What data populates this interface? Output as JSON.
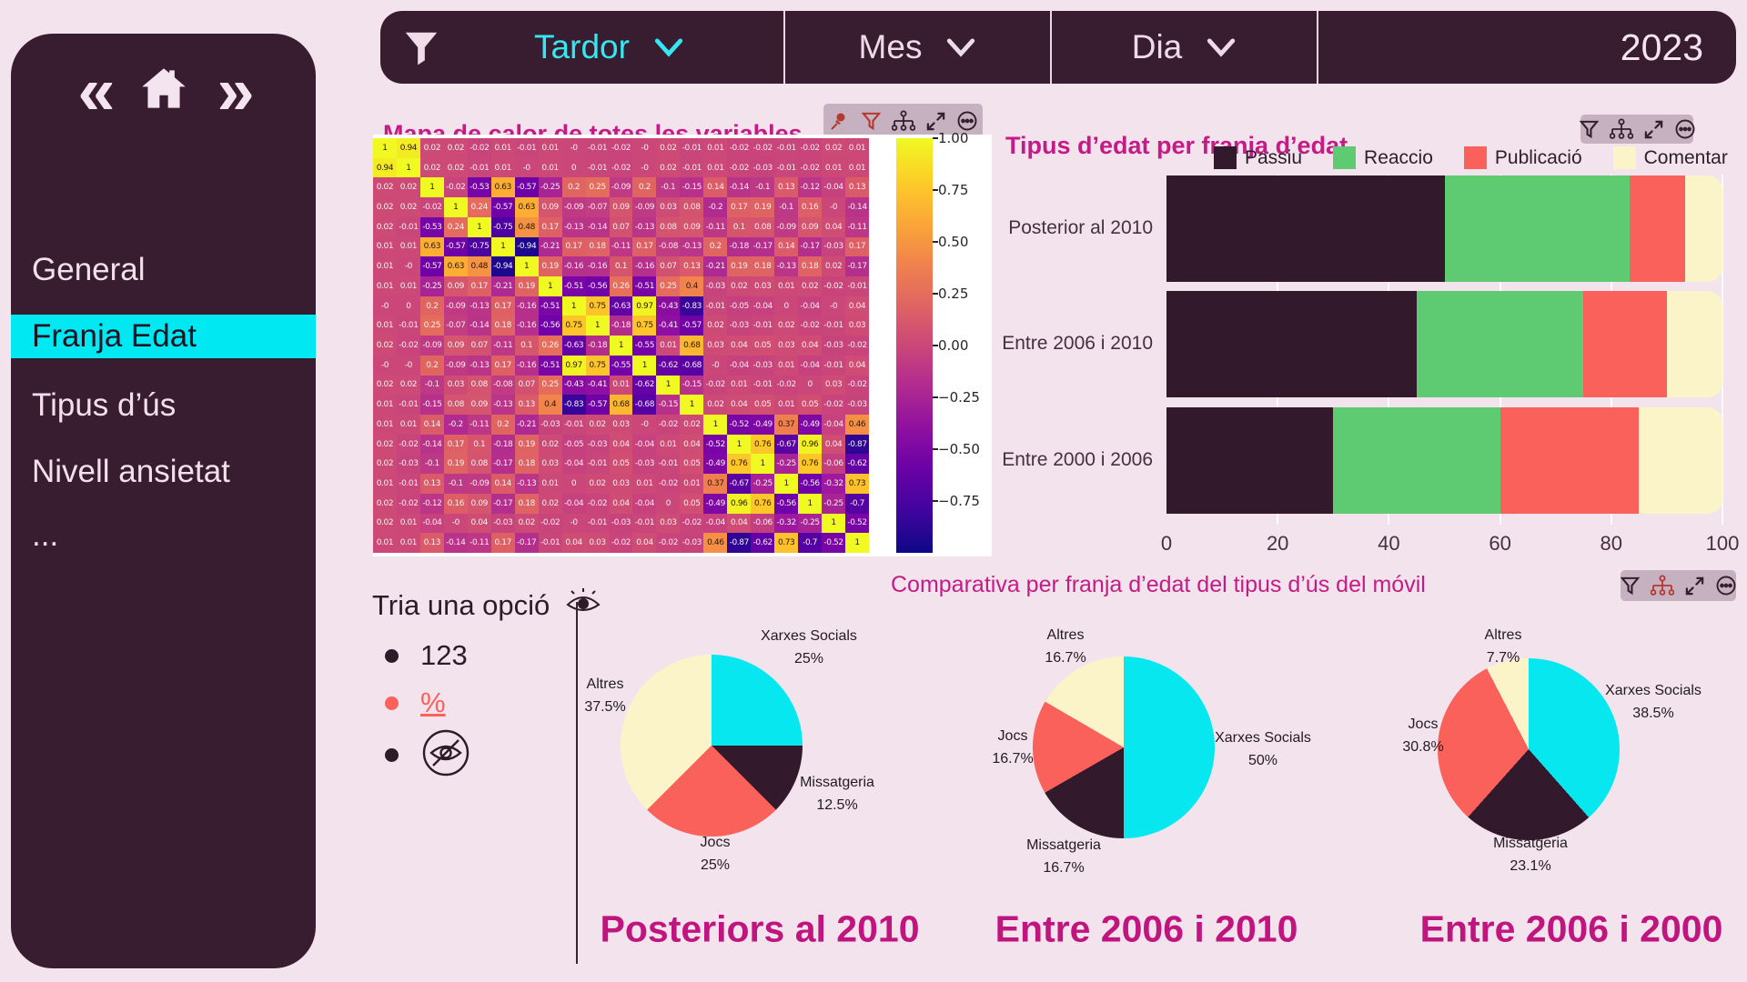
{
  "topbar": {
    "filters": [
      {
        "label": "Tardor",
        "active": true
      },
      {
        "label": "Mes",
        "active": false
      },
      {
        "label": "Dia",
        "active": false
      }
    ],
    "year": "2023"
  },
  "sidebar": {
    "items": [
      {
        "label": "General",
        "active": false
      },
      {
        "label": "Franja Edat",
        "active": true
      },
      {
        "label": "Tipus d’ús",
        "active": false
      },
      {
        "label": "Nivell ansietat",
        "active": false
      },
      {
        "label": "...",
        "active": false
      }
    ]
  },
  "options_panel": {
    "title": "Tria una opció",
    "items": [
      {
        "label": "123",
        "color": "#2e1b29",
        "underline": false,
        "icon": null
      },
      {
        "label": "%",
        "color": "#f9615a",
        "underline": true,
        "icon": null
      },
      {
        "label": "",
        "color": "#2e1b29",
        "underline": false,
        "icon": "eye-slash-icon"
      }
    ]
  },
  "comparative": {
    "title": "Comparativa per franja d’edat del tipus d’ús del móvil",
    "toolbar": [
      "filter",
      "hierarchy",
      "expand",
      "more"
    ]
  },
  "heatmap_toolbar": [
    "pin",
    "filter",
    "hierarchy",
    "expand",
    "more"
  ],
  "bar_toolbar": [
    "filter",
    "hierarchy",
    "expand",
    "more"
  ],
  "chart_data": [
    {
      "id": "heatmap",
      "type": "heatmap",
      "title": "Mapa de calor de totes les variables",
      "colormap": "plasma",
      "vmin": -1,
      "vmax": 1,
      "size": 21,
      "colorbar_ticks": [
        "1.00",
        "0.75",
        "0.50",
        "0.25",
        "0.00",
        "-0.25",
        "-0.50",
        "-0.75"
      ],
      "rows": [
        "1 0.94 0.02 0.02 -0.02 0.01 -0.01 0.01 -0 -0.01 -0.02 -0 0.02 -0.01 0.01 -0.02 -0.02 -0.01 -0.02 0.02 0.01",
        "0.94 1 0.02 0.02 -0.01 0.01 -0 0.01 0 -0.01 -0.02 -0 0.02 -0.01 0.01 -0.02 -0.03 -0.01 -0.02 0.01 0.01",
        "0.02 0.02 1 -0.02 -0.53 0.63 -0.57 -0.25 0.2 0.25 -0.09 0.2 -0.1 -0.15 0.14 -0.14 -0.1 0.13 -0.12 -0.04 0.13",
        "0.02 0.02 -0.02 1 0.24 -0.57 0.63 0.09 -0.09 -0.07 0.09 -0.09 0.03 0.08 -0.2 0.17 0.19 -0.1 0.16 -0 -0.14",
        "0.02 -0.01 -0.53 0.24 1 -0.75 0.48 0.17 -0.13 -0.14 0.07 -0.13 0.08 0.09 -0.11 0.1 0.08 -0.09 0.09 0.04 -0.11",
        "0.01 0.01 0.63 -0.57 -0.75 1 -0.94 -0.21 0.17 0.18 -0.11 0.17 -0.08 -0.13 0.2 -0.18 -0.17 0.14 -0.17 -0.03 0.17",
        "0.01 -0 -0.57 0.63 0.48 -0.94 1 0.19 -0.16 -0.16 0.1 -0.16 0.07 0.13 -0.21 0.19 0.18 -0.13 0.18 0.02 -0.17",
        "0.01 0.01 -0.25 0.09 0.17 -0.21 0.19 1 -0.51 -0.56 0.26 -0.51 0.25 0.4 -0.03 0.02 0.03 0.01 0.02 -0.02 -0.01",
        "-0 0 0.2 -0.09 -0.13 0.17 -0.16 -0.51 1 0.75 -0.63 0.97 -0.43 -0.83 -0.01 -0.05 -0.04 0 -0.04 -0 0.04",
        "0.01 -0.01 0.25 -0.07 -0.14 0.18 -0.16 -0.56 0.75 1 -0.18 0.75 -0.41 -0.57 0.02 -0.03 -0.01 0.02 -0.02 -0.01 0.03",
        "0.02 -0.02 -0.09 0.09 0.07 -0.11 0.1 0.26 -0.63 -0.18 1 -0.55 0.01 0.68 0.03 0.04 0.05 0.03 0.04 -0.03 -0.02",
        "-0 -0 0.2 -0.09 -0.13 0.17 -0.16 -0.51 0.97 0.75 -0.55 1 -0.62 -0.68 -0 -0.04 -0.03 0.01 -0.04 -0.01 0.04",
        "0.02 0.02 -0.1 0.03 0.08 -0.08 0.07 0.25 -0.43 -0.41 0.01 -0.62 1 -0.15 -0.02 0.01 -0.01 -0.02 0 0.03 -0.02",
        "0.01 -0.01 -0.15 0.08 0.09 -0.13 0.13 0.4 -0.83 -0.57 0.68 -0.68 -0.15 1 0.02 0.04 0.05 0.01 0.05 -0.02 -0.03",
        "0.01 0.01 0.14 -0.2 -0.11 0.2 -0.21 -0.03 -0.01 0.02 0.03 -0 -0.02 0.02 1 -0.52 -0.49 0.37 -0.49 -0.04 0.46",
        "0.02 -0.02 -0.14 0.17 0.1 -0.18 0.19 0.02 -0.05 -0.03 0.04 -0.04 0.01 0.04 -0.52 1 0.76 -0.67 0.96 0.04 -0.87",
        "0.02 -0.03 -0.1 0.19 0.08 -0.17 0.18 0.03 -0.04 -0.01 0.05 -0.03 -0.01 0.05 -0.49 0.76 1 -0.25 0.76 -0.06 -0.62",
        "0.01 -0.01 0.13 -0.1 -0.09 0.14 -0.13 0.01 0 0.02 0.03 0.01 -0.02 0.01 0.37 -0.67 -0.25 1 -0.56 -0.32 0.73",
        "0.02 -0.02 -0.12 0.16 0.09 -0.17 0.18 0.02 -0.04 -0.02 0.04 -0.04 0 0.05 -0.49 0.96 0.76 -0.56 1 -0.25 -0.7",
        "0.02 0.01 -0.04 -0 0.04 -0.03 0.02 -0.02 -0 -0.01 -0.03 -0.01 0.03 -0.02 -0.04 0.04 -0.06 -0.32 -0.25 1 -0.52",
        "0.01 0.01 0.13 -0.14 -0.11 0.17 -0.17 -0.01 0.04 0.03 -0.02 0.04 -0.02 -0.03 0.46 -0.87 -0.62 0.73 -0.7 -0.52 1"
      ]
    },
    {
      "id": "stacked-bar",
      "type": "bar",
      "stacked": true,
      "orientation": "horizontal",
      "title": "Tipus d’edat per franja d’edat",
      "categories": [
        "Posterior al 2010",
        "Entre 2006 i 2010",
        "Entre 2000 i 2006"
      ],
      "series": [
        {
          "name": "Passiu",
          "color": "#321a2c",
          "values": [
            50,
            45,
            30
          ]
        },
        {
          "name": "Reaccio",
          "color": "#5ecb72",
          "values": [
            33.3,
            30,
            30
          ]
        },
        {
          "name": "Publicació",
          "color": "#f9615a",
          "values": [
            10,
            15,
            25
          ]
        },
        {
          "name": "Comentar",
          "color": "#fbf4c9",
          "values": [
            6.7,
            10,
            15
          ]
        }
      ],
      "xlim": [
        0,
        100
      ],
      "x_ticks": [
        "0",
        "20",
        "40",
        "60",
        "80",
        "100"
      ],
      "legend_position": "top"
    },
    {
      "id": "pie-1",
      "type": "pie",
      "title": "Posteriors al 2010",
      "slices": [
        {
          "label": "Xarxes Socials",
          "pct": "25%",
          "value": 25,
          "color": "#06e7f0"
        },
        {
          "label": "Missatgeria",
          "pct": "12.5%",
          "value": 12.5,
          "color": "#321a2c"
        },
        {
          "label": "Jocs",
          "pct": "25%",
          "value": 25,
          "color": "#f9615a"
        },
        {
          "label": "Altres",
          "pct": "37.5%",
          "value": 37.5,
          "color": "#fbf4c9"
        }
      ]
    },
    {
      "id": "pie-2",
      "type": "pie",
      "title": "Entre 2006 i 2010",
      "slices": [
        {
          "label": "Xarxes Socials",
          "pct": "50%",
          "value": 50,
          "color": "#06e7f0"
        },
        {
          "label": "Missatgeria",
          "pct": "16.7%",
          "value": 16.7,
          "color": "#321a2c"
        },
        {
          "label": "Jocs",
          "pct": "16.7%",
          "value": 16.7,
          "color": "#f9615a"
        },
        {
          "label": "Altres",
          "pct": "16.7%",
          "value": 16.7,
          "color": "#fbf4c9"
        }
      ]
    },
    {
      "id": "pie-3",
      "type": "pie",
      "title": "Entre 2006 i 2000",
      "slices": [
        {
          "label": "Xarxes Socials",
          "pct": "38.5%",
          "value": 38.5,
          "color": "#06e7f0"
        },
        {
          "label": "Missatgeria",
          "pct": "23.1%",
          "value": 23.1,
          "color": "#321a2c"
        },
        {
          "label": "Jocs",
          "pct": "30.8%",
          "value": 30.8,
          "color": "#f9615a"
        },
        {
          "label": "Altres",
          "pct": "7.7%",
          "value": 7.7,
          "color": "#fbf4c9"
        }
      ]
    }
  ]
}
